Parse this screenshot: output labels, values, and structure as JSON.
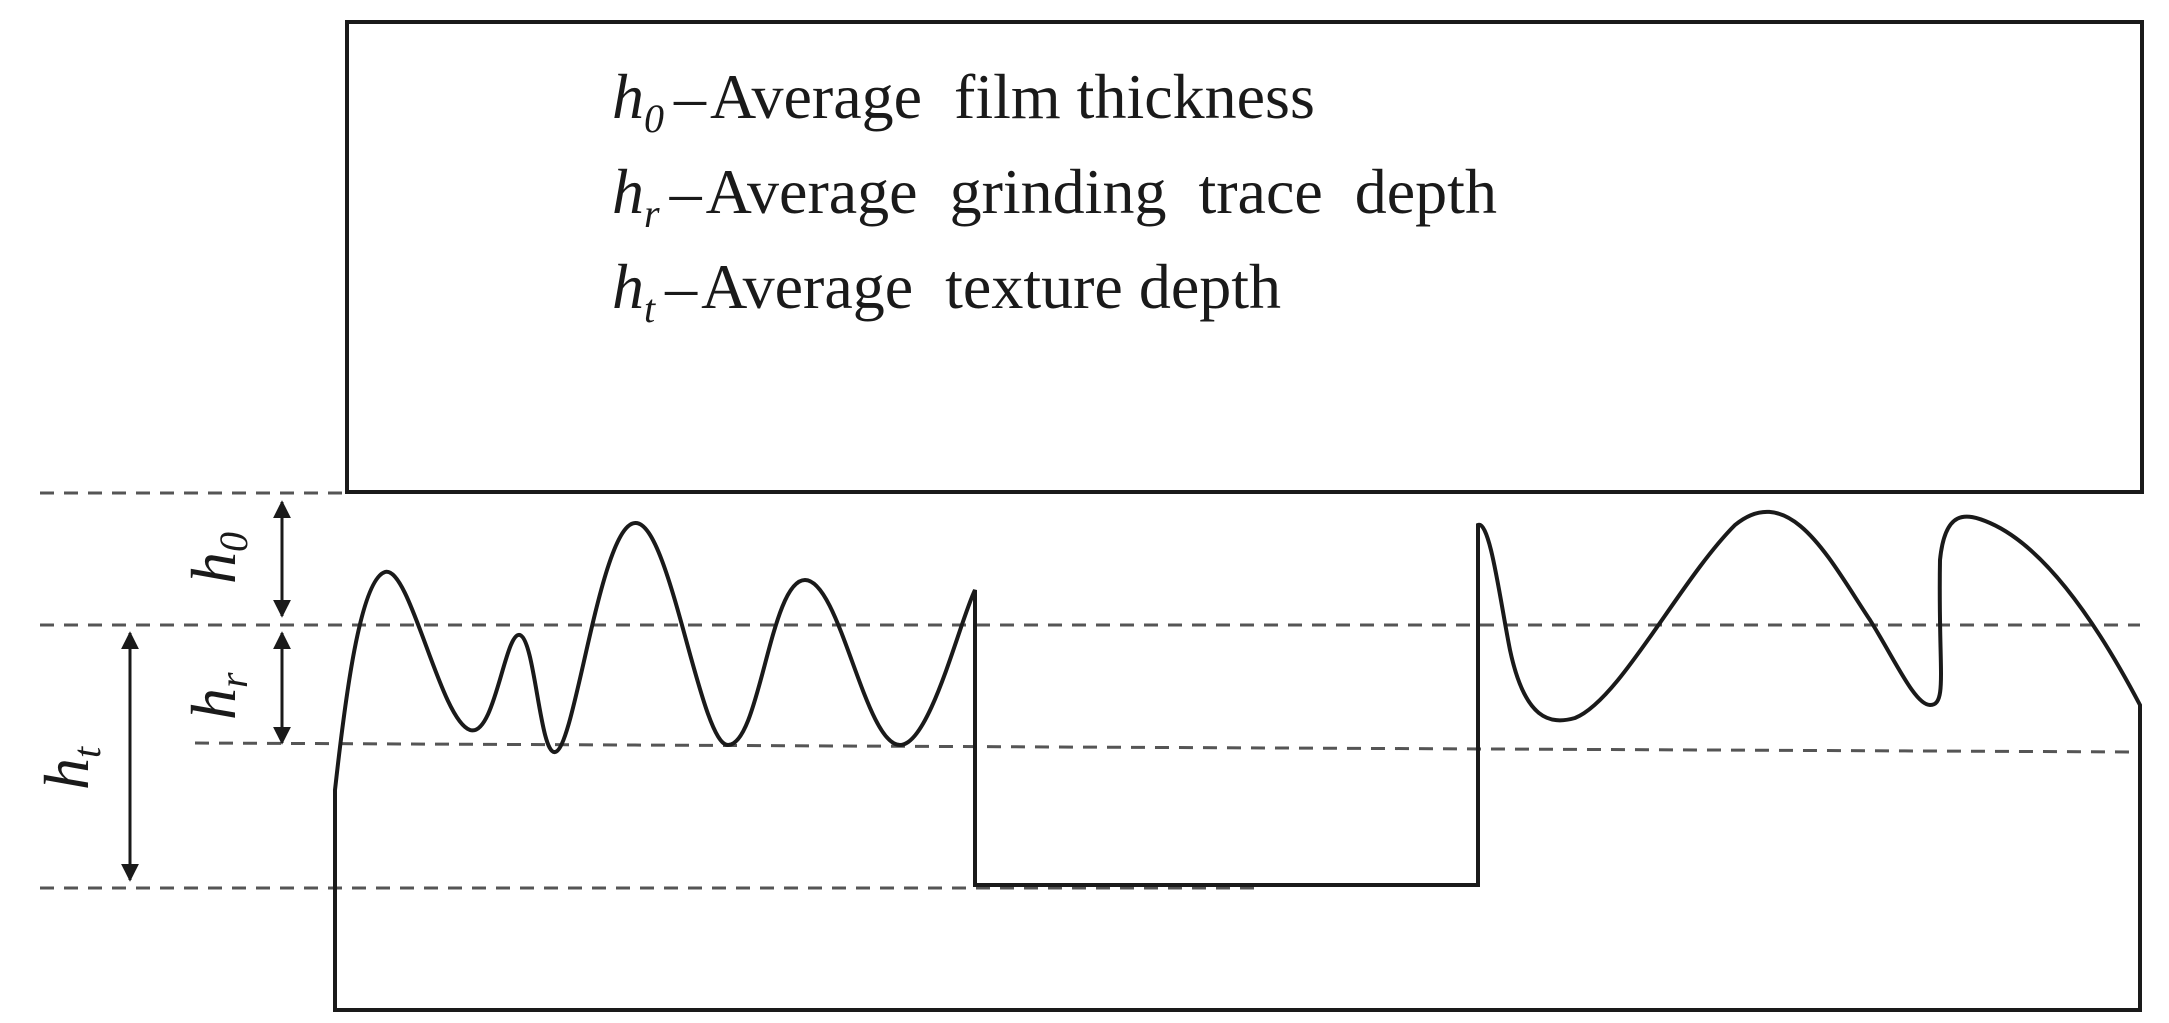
{
  "legend": {
    "items": [
      {
        "symbol": "h",
        "subscript": "0",
        "separator": "–",
        "text": "Average  film thickness"
      },
      {
        "symbol": "h",
        "subscript": "r",
        "separator": "–",
        "text": "Average  grinding  trace  depth"
      },
      {
        "symbol": "h",
        "subscript": "t",
        "separator": "–",
        "text": "Average  texture depth"
      }
    ]
  },
  "dimensions": {
    "h0": {
      "symbol": "h",
      "subscript": "0"
    },
    "hr": {
      "symbol": "h",
      "subscript": "r"
    },
    "ht": {
      "symbol": "h",
      "subscript": "t"
    }
  },
  "colors": {
    "line": "#1a1a1a",
    "dashed": "#555555",
    "background": "#ffffff"
  }
}
